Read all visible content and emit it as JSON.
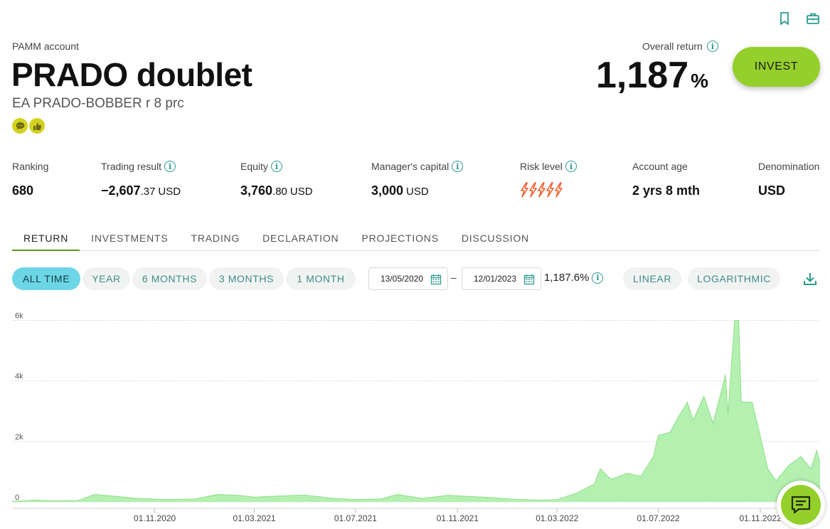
{
  "header": {
    "account_type": "PAMM account",
    "account_name": "PRADO doublet",
    "strategy": "EA PRADO-BOBBER r 8 prc",
    "badges": [
      "chat-bubble-icon",
      "thumbs-up-icon"
    ],
    "overall_return_label": "Overall return",
    "overall_return_value": "1,187",
    "overall_return_unit": "%",
    "invest_label": "INVEST",
    "icons": [
      "bookmark-icon",
      "briefcase-icon"
    ]
  },
  "stats": {
    "ranking": {
      "label": "Ranking",
      "value": "680"
    },
    "trading_result": {
      "label": "Trading result",
      "int": "−2,607",
      "dec": ".37",
      "currency": "USD"
    },
    "equity": {
      "label": "Equity",
      "int": "3,760",
      "dec": ".80",
      "currency": "USD"
    },
    "manager_capital": {
      "label": "Manager's capital",
      "int": "3,000",
      "currency": "USD"
    },
    "risk_level": {
      "label": "Risk level",
      "level": 5,
      "max": 5
    },
    "account_age": {
      "label": "Account age",
      "value": "2 yrs 8 mth"
    },
    "denomination": {
      "label": "Denomination",
      "value": "USD"
    }
  },
  "tabs": [
    "RETURN",
    "INVESTMENTS",
    "TRADING",
    "DECLARATION",
    "PROJECTIONS",
    "DISCUSSION"
  ],
  "active_tab": "RETURN",
  "range_buttons": [
    "ALL TIME",
    "YEAR",
    "6 MONTHS",
    "3 MONTHS",
    "1 MONTH"
  ],
  "active_range": "ALL TIME",
  "date_from": "13/05/2020",
  "date_to": "12/01/2023",
  "range_return": "1,187.6%",
  "scale_buttons": [
    "LINEAR",
    "LOGARITHMIC"
  ],
  "colors": {
    "accent": "#95cf2b",
    "teal": "#2a9b8f",
    "active_range": "#6dd6e6",
    "area_fill": "#b4f0b0",
    "area_line": "#8fe08a",
    "risk": "#f05a28"
  },
  "chart_data": {
    "type": "area",
    "ylim": [
      0,
      6200
    ],
    "y_ticks": [
      0,
      2000,
      4000,
      6000
    ],
    "y_tick_labels": [
      "0",
      "2k",
      "4k",
      "6k"
    ],
    "x_ticks": [
      "2020-11-01",
      "2021-03-01",
      "2021-07-01",
      "2021-11-01",
      "2022-03-01",
      "2022-07-01",
      "2022-11-01"
    ],
    "x_tick_labels": [
      "01.11.2020",
      "01.03.2021",
      "01.07.2021",
      "01.11.2021",
      "01.03.2022",
      "01.07.2022",
      "01.11.2022"
    ],
    "xlim": [
      "2020-05-13",
      "2023-01-12"
    ],
    "grid": true,
    "series": [
      {
        "points": [
          [
            "2020-05-13",
            20
          ],
          [
            "2020-06-10",
            60
          ],
          [
            "2020-07-01",
            40
          ],
          [
            "2020-08-01",
            50
          ],
          [
            "2020-08-20",
            250
          ],
          [
            "2020-09-10",
            200
          ],
          [
            "2020-10-10",
            120
          ],
          [
            "2020-11-15",
            80
          ],
          [
            "2020-12-20",
            100
          ],
          [
            "2021-01-15",
            250
          ],
          [
            "2021-02-10",
            220
          ],
          [
            "2021-03-01",
            160
          ],
          [
            "2021-04-01",
            200
          ],
          [
            "2021-05-01",
            230
          ],
          [
            "2021-06-01",
            130
          ],
          [
            "2021-07-01",
            80
          ],
          [
            "2021-08-01",
            100
          ],
          [
            "2021-08-20",
            250
          ],
          [
            "2021-09-20",
            120
          ],
          [
            "2021-10-20",
            220
          ],
          [
            "2021-11-15",
            180
          ],
          [
            "2021-12-10",
            150
          ],
          [
            "2022-01-10",
            90
          ],
          [
            "2022-02-10",
            60
          ],
          [
            "2022-03-01",
            80
          ],
          [
            "2022-03-25",
            300
          ],
          [
            "2022-04-15",
            600
          ],
          [
            "2022-04-22",
            1100
          ],
          [
            "2022-05-05",
            750
          ],
          [
            "2022-05-25",
            950
          ],
          [
            "2022-06-10",
            850
          ],
          [
            "2022-06-25",
            1500
          ],
          [
            "2022-07-01",
            2200
          ],
          [
            "2022-07-15",
            2300
          ],
          [
            "2022-07-25",
            2800
          ],
          [
            "2022-08-05",
            3300
          ],
          [
            "2022-08-12",
            2700
          ],
          [
            "2022-08-25",
            3500
          ],
          [
            "2022-09-05",
            2600
          ],
          [
            "2022-09-20",
            4200
          ],
          [
            "2022-09-23",
            2900
          ],
          [
            "2022-10-01",
            6000
          ],
          [
            "2022-10-06",
            6000
          ],
          [
            "2022-10-09",
            3300
          ],
          [
            "2022-10-22",
            3300
          ],
          [
            "2022-10-31",
            2300
          ],
          [
            "2022-11-10",
            1100
          ],
          [
            "2022-11-20",
            700
          ],
          [
            "2022-12-05",
            1200
          ],
          [
            "2022-12-20",
            1500
          ],
          [
            "2023-01-01",
            1100
          ],
          [
            "2023-01-08",
            1700
          ],
          [
            "2023-01-12",
            1300
          ]
        ]
      }
    ]
  }
}
